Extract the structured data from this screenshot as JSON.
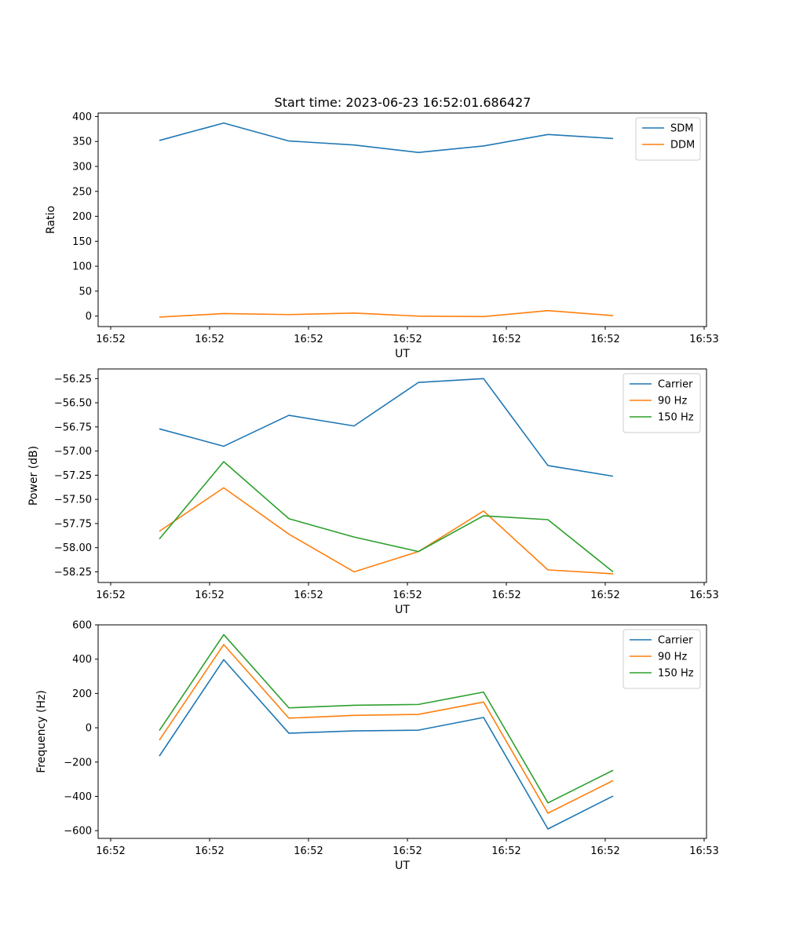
{
  "figure": {
    "title": "Start time: 2023-06-23 16:52:01.686427"
  },
  "chart_data": [
    {
      "type": "line",
      "xlabel": "UT",
      "ylabel": "Ratio",
      "xtick_labels": [
        "16:52",
        "16:52",
        "16:52",
        "16:52",
        "16:52",
        "16:52",
        "16:53"
      ],
      "yticks": [
        0,
        50,
        100,
        150,
        200,
        250,
        300,
        350,
        400
      ],
      "ylim": [
        -21,
        407
      ],
      "grid": false,
      "legend_position": "top-right",
      "series": [
        {
          "name": "SDM",
          "color": "#1f77b4",
          "values": [
            352,
            387,
            351,
            343,
            328,
            341,
            364,
            356
          ]
        },
        {
          "name": "DDM",
          "color": "#ff7f0e",
          "values": [
            -2,
            5,
            3,
            6,
            0,
            -1,
            11,
            1
          ]
        }
      ]
    },
    {
      "type": "line",
      "xlabel": "UT",
      "ylabel": "Power (dB)",
      "xtick_labels": [
        "16:52",
        "16:52",
        "16:52",
        "16:52",
        "16:52",
        "16:52",
        "16:53"
      ],
      "yticks": [
        -58.25,
        -58.0,
        -57.75,
        -57.5,
        -57.25,
        -57.0,
        -56.75,
        -56.5,
        -56.25
      ],
      "ytick_labels": [
        "−58.25",
        "−58.00",
        "−57.75",
        "−57.50",
        "−57.25",
        "−57.00",
        "−56.75",
        "−56.50",
        "−56.25"
      ],
      "ylim": [
        -58.36,
        -56.15
      ],
      "grid": false,
      "legend_position": "top-right",
      "series": [
        {
          "name": "Carrier",
          "color": "#1f77b4",
          "values": [
            -56.77,
            -56.95,
            -56.63,
            -56.74,
            -56.29,
            -56.25,
            -57.15,
            -57.26
          ]
        },
        {
          "name": "90 Hz",
          "color": "#ff7f0e",
          "values": [
            -57.83,
            -57.38,
            -57.86,
            -58.25,
            -58.04,
            -57.62,
            -58.23,
            -58.27
          ]
        },
        {
          "name": "150 Hz",
          "color": "#2ca02c",
          "values": [
            -57.91,
            -57.11,
            -57.7,
            -57.89,
            -58.04,
            -57.67,
            -57.71,
            -58.25
          ]
        }
      ]
    },
    {
      "type": "line",
      "xlabel": "UT",
      "ylabel": "Frequency (Hz)",
      "xtick_labels": [
        "16:52",
        "16:52",
        "16:52",
        "16:52",
        "16:52",
        "16:52",
        "16:53"
      ],
      "yticks": [
        -600,
        -400,
        -200,
        0,
        200,
        400,
        600
      ],
      "ytick_labels": [
        "−600",
        "−400",
        "−200",
        "0",
        "200",
        "400",
        "600"
      ],
      "ylim": [
        -645,
        600
      ],
      "grid": false,
      "legend_position": "top-right",
      "series": [
        {
          "name": "Carrier",
          "color": "#1f77b4",
          "values": [
            -165,
            397,
            -32,
            -18,
            -14,
            60,
            -590,
            -398
          ]
        },
        {
          "name": "90 Hz",
          "color": "#ff7f0e",
          "values": [
            -72,
            485,
            56,
            72,
            78,
            150,
            -498,
            -308
          ]
        },
        {
          "name": "150 Hz",
          "color": "#2ca02c",
          "values": [
            -16,
            543,
            116,
            131,
            136,
            208,
            -438,
            -248
          ]
        }
      ]
    }
  ]
}
